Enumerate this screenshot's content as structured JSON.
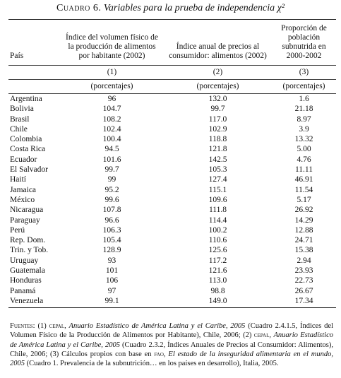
{
  "title": {
    "label": "Cuadro 6.",
    "text": "Variables para la prueba de independencia χ²"
  },
  "table": {
    "headers": [
      "País",
      "Índice del volumen físico de la producción de alimentos por habitante (2002)",
      "Índice anual de precios al consumidor: alimentos (2002)",
      "Proporción de población subnutrida en 2000-2002"
    ],
    "column_numbers": [
      "(1)",
      "(2)",
      "(3)"
    ],
    "units": [
      "(porcentajes)",
      "(porcentajes)",
      "(porcentajes)"
    ],
    "rows": [
      [
        "Argentina",
        "96",
        "132.0",
        "1.6"
      ],
      [
        "Bolivia",
        "104.7",
        "99.7",
        "21.18"
      ],
      [
        "Brasil",
        "108.2",
        "117.0",
        "8.97"
      ],
      [
        "Chile",
        "102.4",
        "102.9",
        "3.9"
      ],
      [
        "Colombia",
        "100.4",
        "118.8",
        "13.32"
      ],
      [
        "Costa Rica",
        "94.5",
        "121.8",
        "5.00"
      ],
      [
        "Ecuador",
        "101.6",
        "142.5",
        "4.76"
      ],
      [
        "El Salvador",
        "99.7",
        "105.3",
        "11.11"
      ],
      [
        "Haití",
        "99",
        "127.4",
        "46.91"
      ],
      [
        "Jamaica",
        "95.2",
        "115.1",
        "11.54"
      ],
      [
        "México",
        "99.6",
        "109.6",
        "5.17"
      ],
      [
        "Nicaragua",
        "107.8",
        "111.8",
        "26.92"
      ],
      [
        "Paraguay",
        "96.6",
        "114.4",
        "14.29"
      ],
      [
        "Perú",
        "106.3",
        "100.2",
        "12.88"
      ],
      [
        "Rep. Dom.",
        "105.4",
        "110.6",
        "24.71"
      ],
      [
        "Trin. y Tob.",
        "128.9",
        "125.6",
        "15.38"
      ],
      [
        "Uruguay",
        "93",
        "117.2",
        "2.94"
      ],
      [
        "Guatemala",
        "101",
        "121.6",
        "23.93"
      ],
      [
        "Honduras",
        "106",
        "113.0",
        "22.73"
      ],
      [
        "Panamá",
        "97",
        "98.8",
        "26.67"
      ],
      [
        "Venezuela",
        "99.1",
        "149.0",
        "17.34"
      ]
    ]
  },
  "footnote": {
    "parts": [
      "Fuentes:",
      " (1) ",
      "cepal",
      ", ",
      "Anuario Estadístico de América Latina y el Caribe, 2005",
      " (Cuadro 2.4.1.5, Índices del Volumen Físico de la Producción de Alimentos por Habitante), Chile, 2006; (2) ",
      "cepal",
      ", ",
      "Anuario Estadístico de América Latina y el Caribe, 2005",
      " (Cuadro 2.3.2, Índices Anuales de Precios al Consumidor: Alimentos), Chile, 2006; (3) Cálculos propios con base en ",
      "fao",
      ", ",
      "El estado de la inseguridad alimentaria en el mundo, 2005",
      " (Cuadro 1. Prevalencia de la subnutrición… en los países en desarrollo), Italia, 2005."
    ]
  }
}
